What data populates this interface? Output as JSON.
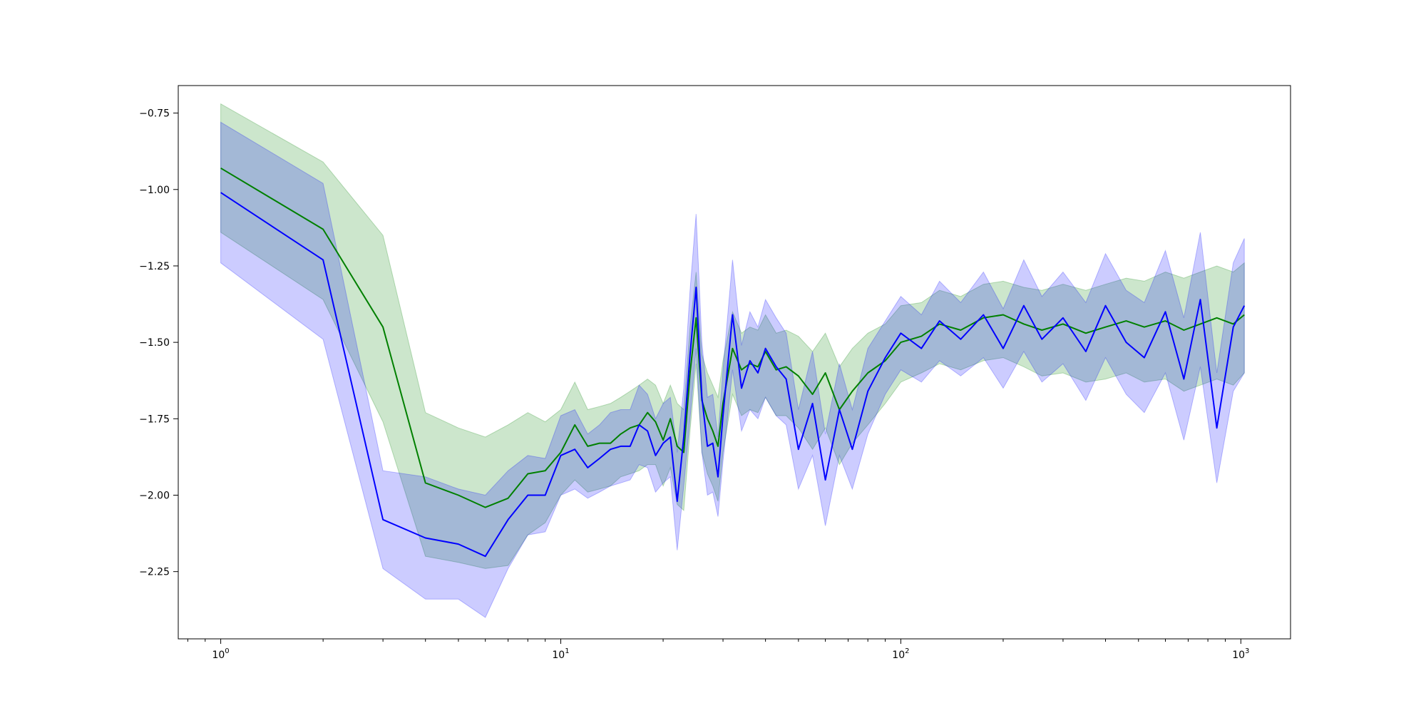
{
  "chart_data": {
    "type": "line",
    "title": "",
    "xlabel": "",
    "ylabel": "",
    "xscale": "log",
    "xlim": [
      0.75,
      1400
    ],
    "ylim": [
      -2.47,
      -0.66
    ],
    "grid": false,
    "legend": "none",
    "x_ticks": [
      {
        "value": 1,
        "base": "10",
        "exp": "0"
      },
      {
        "value": 10,
        "base": "10",
        "exp": "1"
      },
      {
        "value": 100,
        "base": "10",
        "exp": "2"
      },
      {
        "value": 1000,
        "base": "10",
        "exp": "3"
      }
    ],
    "y_ticks": [
      {
        "value": -0.75,
        "label": "−0.75"
      },
      {
        "value": -1.0,
        "label": "−1.00"
      },
      {
        "value": -1.25,
        "label": "−1.25"
      },
      {
        "value": -1.5,
        "label": "−1.50"
      },
      {
        "value": -1.75,
        "label": "−1.75"
      },
      {
        "value": -2.0,
        "label": "−2.00"
      },
      {
        "value": -2.25,
        "label": "−2.25"
      }
    ],
    "series": [
      {
        "color": "#008000",
        "band_color": "#008000",
        "band_opacity": 0.2,
        "x": [
          1,
          2,
          3,
          4,
          5,
          6,
          7,
          8,
          9,
          10,
          11,
          12,
          13,
          14,
          15,
          16,
          17,
          18,
          19,
          20,
          21,
          22,
          23,
          24,
          25,
          26,
          27,
          28,
          29,
          30,
          32,
          34,
          36,
          38,
          40,
          43,
          46,
          50,
          55,
          60,
          66,
          72,
          80,
          90,
          100,
          115,
          130,
          150,
          175,
          200,
          230,
          260,
          300,
          350,
          400,
          460,
          520,
          600,
          680,
          760,
          850,
          950,
          1024
        ],
        "y": [
          -0.93,
          -1.13,
          -1.45,
          -1.96,
          -2.0,
          -2.04,
          -2.01,
          -1.93,
          -1.92,
          -1.86,
          -1.77,
          -1.84,
          -1.83,
          -1.83,
          -1.8,
          -1.78,
          -1.77,
          -1.73,
          -1.76,
          -1.82,
          -1.75,
          -1.84,
          -1.86,
          -1.6,
          -1.42,
          -1.69,
          -1.75,
          -1.79,
          -1.84,
          -1.7,
          -1.52,
          -1.59,
          -1.57,
          -1.58,
          -1.53,
          -1.59,
          -1.58,
          -1.61,
          -1.67,
          -1.6,
          -1.72,
          -1.66,
          -1.6,
          -1.56,
          -1.5,
          -1.48,
          -1.44,
          -1.46,
          -1.42,
          -1.41,
          -1.44,
          -1.46,
          -1.44,
          -1.47,
          -1.45,
          -1.43,
          -1.45,
          -1.43,
          -1.46,
          -1.44,
          -1.42,
          -1.44,
          -1.41
        ],
        "lower": [
          -1.14,
          -1.36,
          -1.76,
          -2.2,
          -2.22,
          -2.24,
          -2.23,
          -2.13,
          -2.09,
          -2.0,
          -1.95,
          -1.99,
          -1.98,
          -1.97,
          -1.94,
          -1.93,
          -1.92,
          -1.9,
          -1.9,
          -1.97,
          -1.91,
          -2.03,
          -2.05,
          -1.79,
          -1.57,
          -1.86,
          -1.93,
          -1.97,
          -2.02,
          -1.86,
          -1.67,
          -1.74,
          -1.72,
          -1.73,
          -1.68,
          -1.74,
          -1.74,
          -1.78,
          -1.85,
          -1.78,
          -1.9,
          -1.83,
          -1.77,
          -1.7,
          -1.63,
          -1.6,
          -1.57,
          -1.59,
          -1.56,
          -1.55,
          -1.58,
          -1.61,
          -1.6,
          -1.63,
          -1.62,
          -1.6,
          -1.63,
          -1.62,
          -1.66,
          -1.64,
          -1.62,
          -1.64,
          -1.6
        ],
        "upper": [
          -0.72,
          -0.91,
          -1.15,
          -1.73,
          -1.78,
          -1.81,
          -1.77,
          -1.73,
          -1.76,
          -1.72,
          -1.63,
          -1.72,
          -1.71,
          -1.7,
          -1.68,
          -1.66,
          -1.64,
          -1.62,
          -1.64,
          -1.7,
          -1.64,
          -1.7,
          -1.72,
          -1.45,
          -1.27,
          -1.54,
          -1.6,
          -1.64,
          -1.68,
          -1.56,
          -1.4,
          -1.47,
          -1.45,
          -1.46,
          -1.41,
          -1.47,
          -1.46,
          -1.48,
          -1.53,
          -1.47,
          -1.58,
          -1.52,
          -1.47,
          -1.44,
          -1.38,
          -1.37,
          -1.33,
          -1.35,
          -1.31,
          -1.3,
          -1.32,
          -1.33,
          -1.31,
          -1.33,
          -1.31,
          -1.29,
          -1.3,
          -1.27,
          -1.29,
          -1.27,
          -1.25,
          -1.27,
          -1.24
        ]
      },
      {
        "color": "#0000ff",
        "band_color": "#0000ff",
        "band_opacity": 0.2,
        "x": [
          1,
          2,
          3,
          4,
          5,
          6,
          7,
          8,
          9,
          10,
          11,
          12,
          13,
          14,
          15,
          16,
          17,
          18,
          19,
          20,
          21,
          22,
          23,
          24,
          25,
          26,
          27,
          28,
          29,
          30,
          32,
          34,
          36,
          38,
          40,
          43,
          46,
          50,
          55,
          60,
          66,
          72,
          80,
          90,
          100,
          115,
          130,
          150,
          175,
          200,
          230,
          260,
          300,
          350,
          400,
          460,
          520,
          600,
          680,
          760,
          850,
          950,
          1024
        ],
        "y": [
          -1.01,
          -1.23,
          -2.08,
          -2.14,
          -2.16,
          -2.2,
          -2.08,
          -2.0,
          -2.0,
          -1.87,
          -1.85,
          -1.91,
          -1.88,
          -1.85,
          -1.84,
          -1.84,
          -1.77,
          -1.79,
          -1.87,
          -1.83,
          -1.81,
          -2.02,
          -1.81,
          -1.54,
          -1.32,
          -1.68,
          -1.84,
          -1.83,
          -1.94,
          -1.74,
          -1.41,
          -1.65,
          -1.56,
          -1.6,
          -1.52,
          -1.58,
          -1.62,
          -1.85,
          -1.7,
          -1.95,
          -1.72,
          -1.85,
          -1.66,
          -1.55,
          -1.47,
          -1.52,
          -1.43,
          -1.49,
          -1.41,
          -1.52,
          -1.38,
          -1.49,
          -1.42,
          -1.53,
          -1.38,
          -1.5,
          -1.55,
          -1.4,
          -1.62,
          -1.36,
          -1.78,
          -1.45,
          -1.38
        ],
        "lower": [
          -1.24,
          -1.49,
          -2.24,
          -2.34,
          -2.34,
          -2.4,
          -2.24,
          -2.13,
          -2.12,
          -2.0,
          -1.98,
          -2.01,
          -1.99,
          -1.97,
          -1.96,
          -1.95,
          -1.9,
          -1.91,
          -1.99,
          -1.96,
          -1.94,
          -2.18,
          -1.97,
          -1.75,
          -1.52,
          -1.86,
          -2.0,
          -1.99,
          -2.07,
          -1.89,
          -1.59,
          -1.79,
          -1.72,
          -1.75,
          -1.68,
          -1.74,
          -1.77,
          -1.98,
          -1.87,
          -2.1,
          -1.87,
          -1.98,
          -1.8,
          -1.67,
          -1.59,
          -1.63,
          -1.56,
          -1.61,
          -1.55,
          -1.65,
          -1.53,
          -1.63,
          -1.57,
          -1.69,
          -1.55,
          -1.67,
          -1.73,
          -1.6,
          -1.82,
          -1.58,
          -1.96,
          -1.66,
          -1.6
        ],
        "upper": [
          -0.78,
          -0.98,
          -1.92,
          -1.94,
          -1.98,
          -2.0,
          -1.92,
          -1.87,
          -1.88,
          -1.74,
          -1.72,
          -1.8,
          -1.77,
          -1.73,
          -1.72,
          -1.72,
          -1.64,
          -1.67,
          -1.75,
          -1.7,
          -1.68,
          -1.86,
          -1.65,
          -1.33,
          -1.08,
          -1.5,
          -1.68,
          -1.67,
          -1.81,
          -1.59,
          -1.23,
          -1.51,
          -1.4,
          -1.45,
          -1.36,
          -1.42,
          -1.47,
          -1.72,
          -1.53,
          -1.8,
          -1.57,
          -1.72,
          -1.52,
          -1.43,
          -1.35,
          -1.41,
          -1.3,
          -1.37,
          -1.27,
          -1.39,
          -1.23,
          -1.35,
          -1.27,
          -1.37,
          -1.21,
          -1.33,
          -1.37,
          -1.2,
          -1.42,
          -1.14,
          -1.6,
          -1.24,
          -1.16
        ]
      }
    ]
  }
}
